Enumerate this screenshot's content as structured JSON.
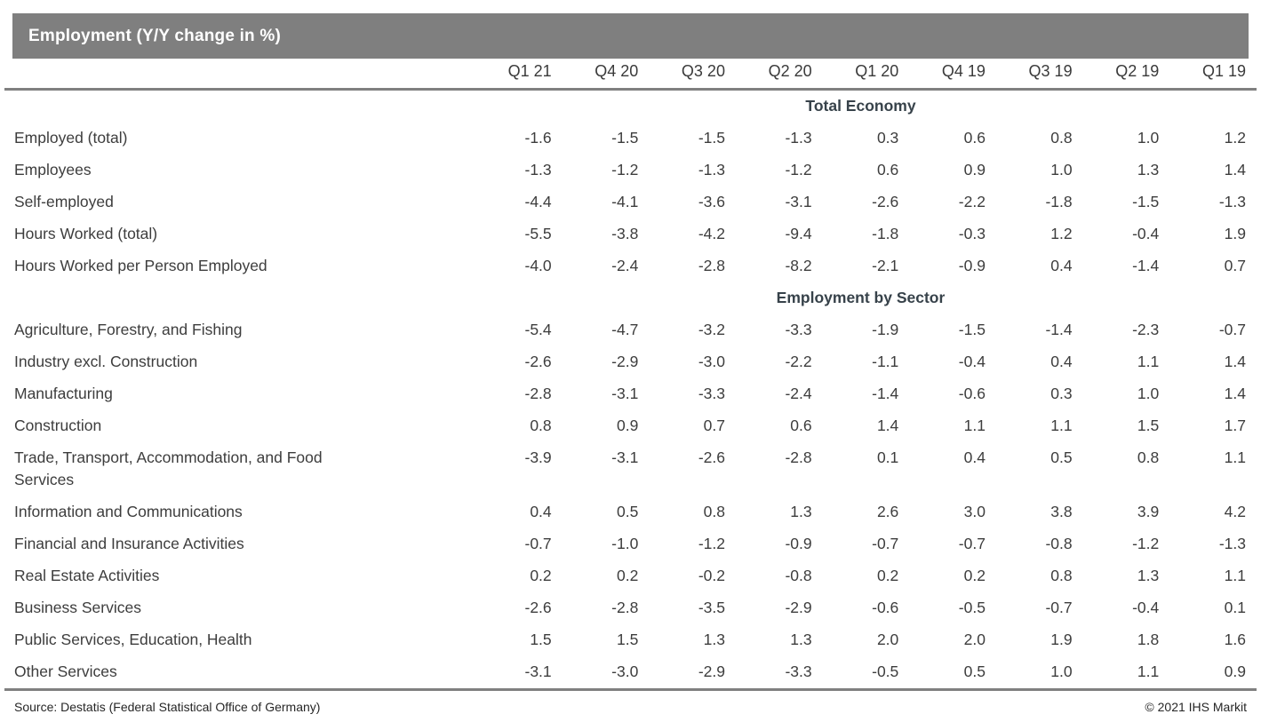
{
  "title": "Employment (Y/Y change in %)",
  "colors": {
    "title_bar_bg": "#7f7f7f",
    "title_text": "#ffffff",
    "rule": "#808080",
    "body_text": "#3d3d3d",
    "section_header_text": "#37424a"
  },
  "chart_data": {
    "type": "table",
    "title": "Employment (Y/Y change in %)",
    "columns": [
      "Q1 21",
      "Q4 20",
      "Q3 20",
      "Q2 20",
      "Q1 20",
      "Q4 19",
      "Q3 19",
      "Q2 19",
      "Q1 19"
    ],
    "sections": [
      {
        "header": "Total Economy",
        "rows": [
          {
            "label": "Employed (total)",
            "values": [
              "-1.6",
              "-1.5",
              "-1.5",
              "-1.3",
              "0.3",
              "0.6",
              "0.8",
              "1.0",
              "1.2"
            ]
          },
          {
            "label": "Employees",
            "values": [
              "-1.3",
              "-1.2",
              "-1.3",
              "-1.2",
              "0.6",
              "0.9",
              "1.0",
              "1.3",
              "1.4"
            ]
          },
          {
            "label": "Self-employed",
            "values": [
              "-4.4",
              "-4.1",
              "-3.6",
              "-3.1",
              "-2.6",
              "-2.2",
              "-1.8",
              "-1.5",
              "-1.3"
            ]
          },
          {
            "label": "Hours Worked (total)",
            "values": [
              "-5.5",
              "-3.8",
              "-4.2",
              "-9.4",
              "-1.8",
              "-0.3",
              "1.2",
              "-0.4",
              "1.9"
            ]
          },
          {
            "label": "Hours Worked per Person Employed",
            "values": [
              "-4.0",
              "-2.4",
              "-2.8",
              "-8.2",
              "-2.1",
              "-0.9",
              "0.4",
              "-1.4",
              "0.7"
            ]
          }
        ]
      },
      {
        "header": "Employment by Sector",
        "rows": [
          {
            "label": "Agriculture, Forestry, and Fishing",
            "values": [
              "-5.4",
              "-4.7",
              "-3.2",
              "-3.3",
              "-1.9",
              "-1.5",
              "-1.4",
              "-2.3",
              "-0.7"
            ]
          },
          {
            "label": "Industry excl. Construction",
            "values": [
              "-2.6",
              "-2.9",
              "-3.0",
              "-2.2",
              "-1.1",
              "-0.4",
              "0.4",
              "1.1",
              "1.4"
            ]
          },
          {
            "label": "Manufacturing",
            "values": [
              "-2.8",
              "-3.1",
              "-3.3",
              "-2.4",
              "-1.4",
              "-0.6",
              "0.3",
              "1.0",
              "1.4"
            ]
          },
          {
            "label": "Construction",
            "values": [
              "0.8",
              "0.9",
              "0.7",
              "0.6",
              "1.4",
              "1.1",
              "1.1",
              "1.5",
              "1.7"
            ]
          },
          {
            "label": "Trade, Transport, Accommodation, and Food Services",
            "values": [
              "-3.9",
              "-3.1",
              "-2.6",
              "-2.8",
              "0.1",
              "0.4",
              "0.5",
              "0.8",
              "1.1"
            ]
          },
          {
            "label": "Information and Communications",
            "values": [
              "0.4",
              "0.5",
              "0.8",
              "1.3",
              "2.6",
              "3.0",
              "3.8",
              "3.9",
              "4.2"
            ]
          },
          {
            "label": "Financial and Insurance Activities",
            "values": [
              "-0.7",
              "-1.0",
              "-1.2",
              "-0.9",
              "-0.7",
              "-0.7",
              "-0.8",
              "-1.2",
              "-1.3"
            ]
          },
          {
            "label": "Real Estate Activities",
            "values": [
              "0.2",
              "0.2",
              "-0.2",
              "-0.8",
              "0.2",
              "0.2",
              "0.8",
              "1.3",
              "1.1"
            ]
          },
          {
            "label": "Business Services",
            "values": [
              "-2.6",
              "-2.8",
              "-3.5",
              "-2.9",
              "-0.6",
              "-0.5",
              "-0.7",
              "-0.4",
              "0.1"
            ]
          },
          {
            "label": "Public Services, Education, Health",
            "values": [
              "1.5",
              "1.5",
              "1.3",
              "1.3",
              "2.0",
              "2.0",
              "1.9",
              "1.8",
              "1.6"
            ]
          },
          {
            "label": "Other Services",
            "values": [
              "-3.1",
              "-3.0",
              "-2.9",
              "-3.3",
              "-0.5",
              "0.5",
              "1.0",
              "1.1",
              "0.9"
            ]
          }
        ]
      }
    ]
  },
  "footer": {
    "source": "Source: Destatis (Federal Statistical Office of Germany)",
    "copyright": "© 2021 IHS Markit"
  }
}
